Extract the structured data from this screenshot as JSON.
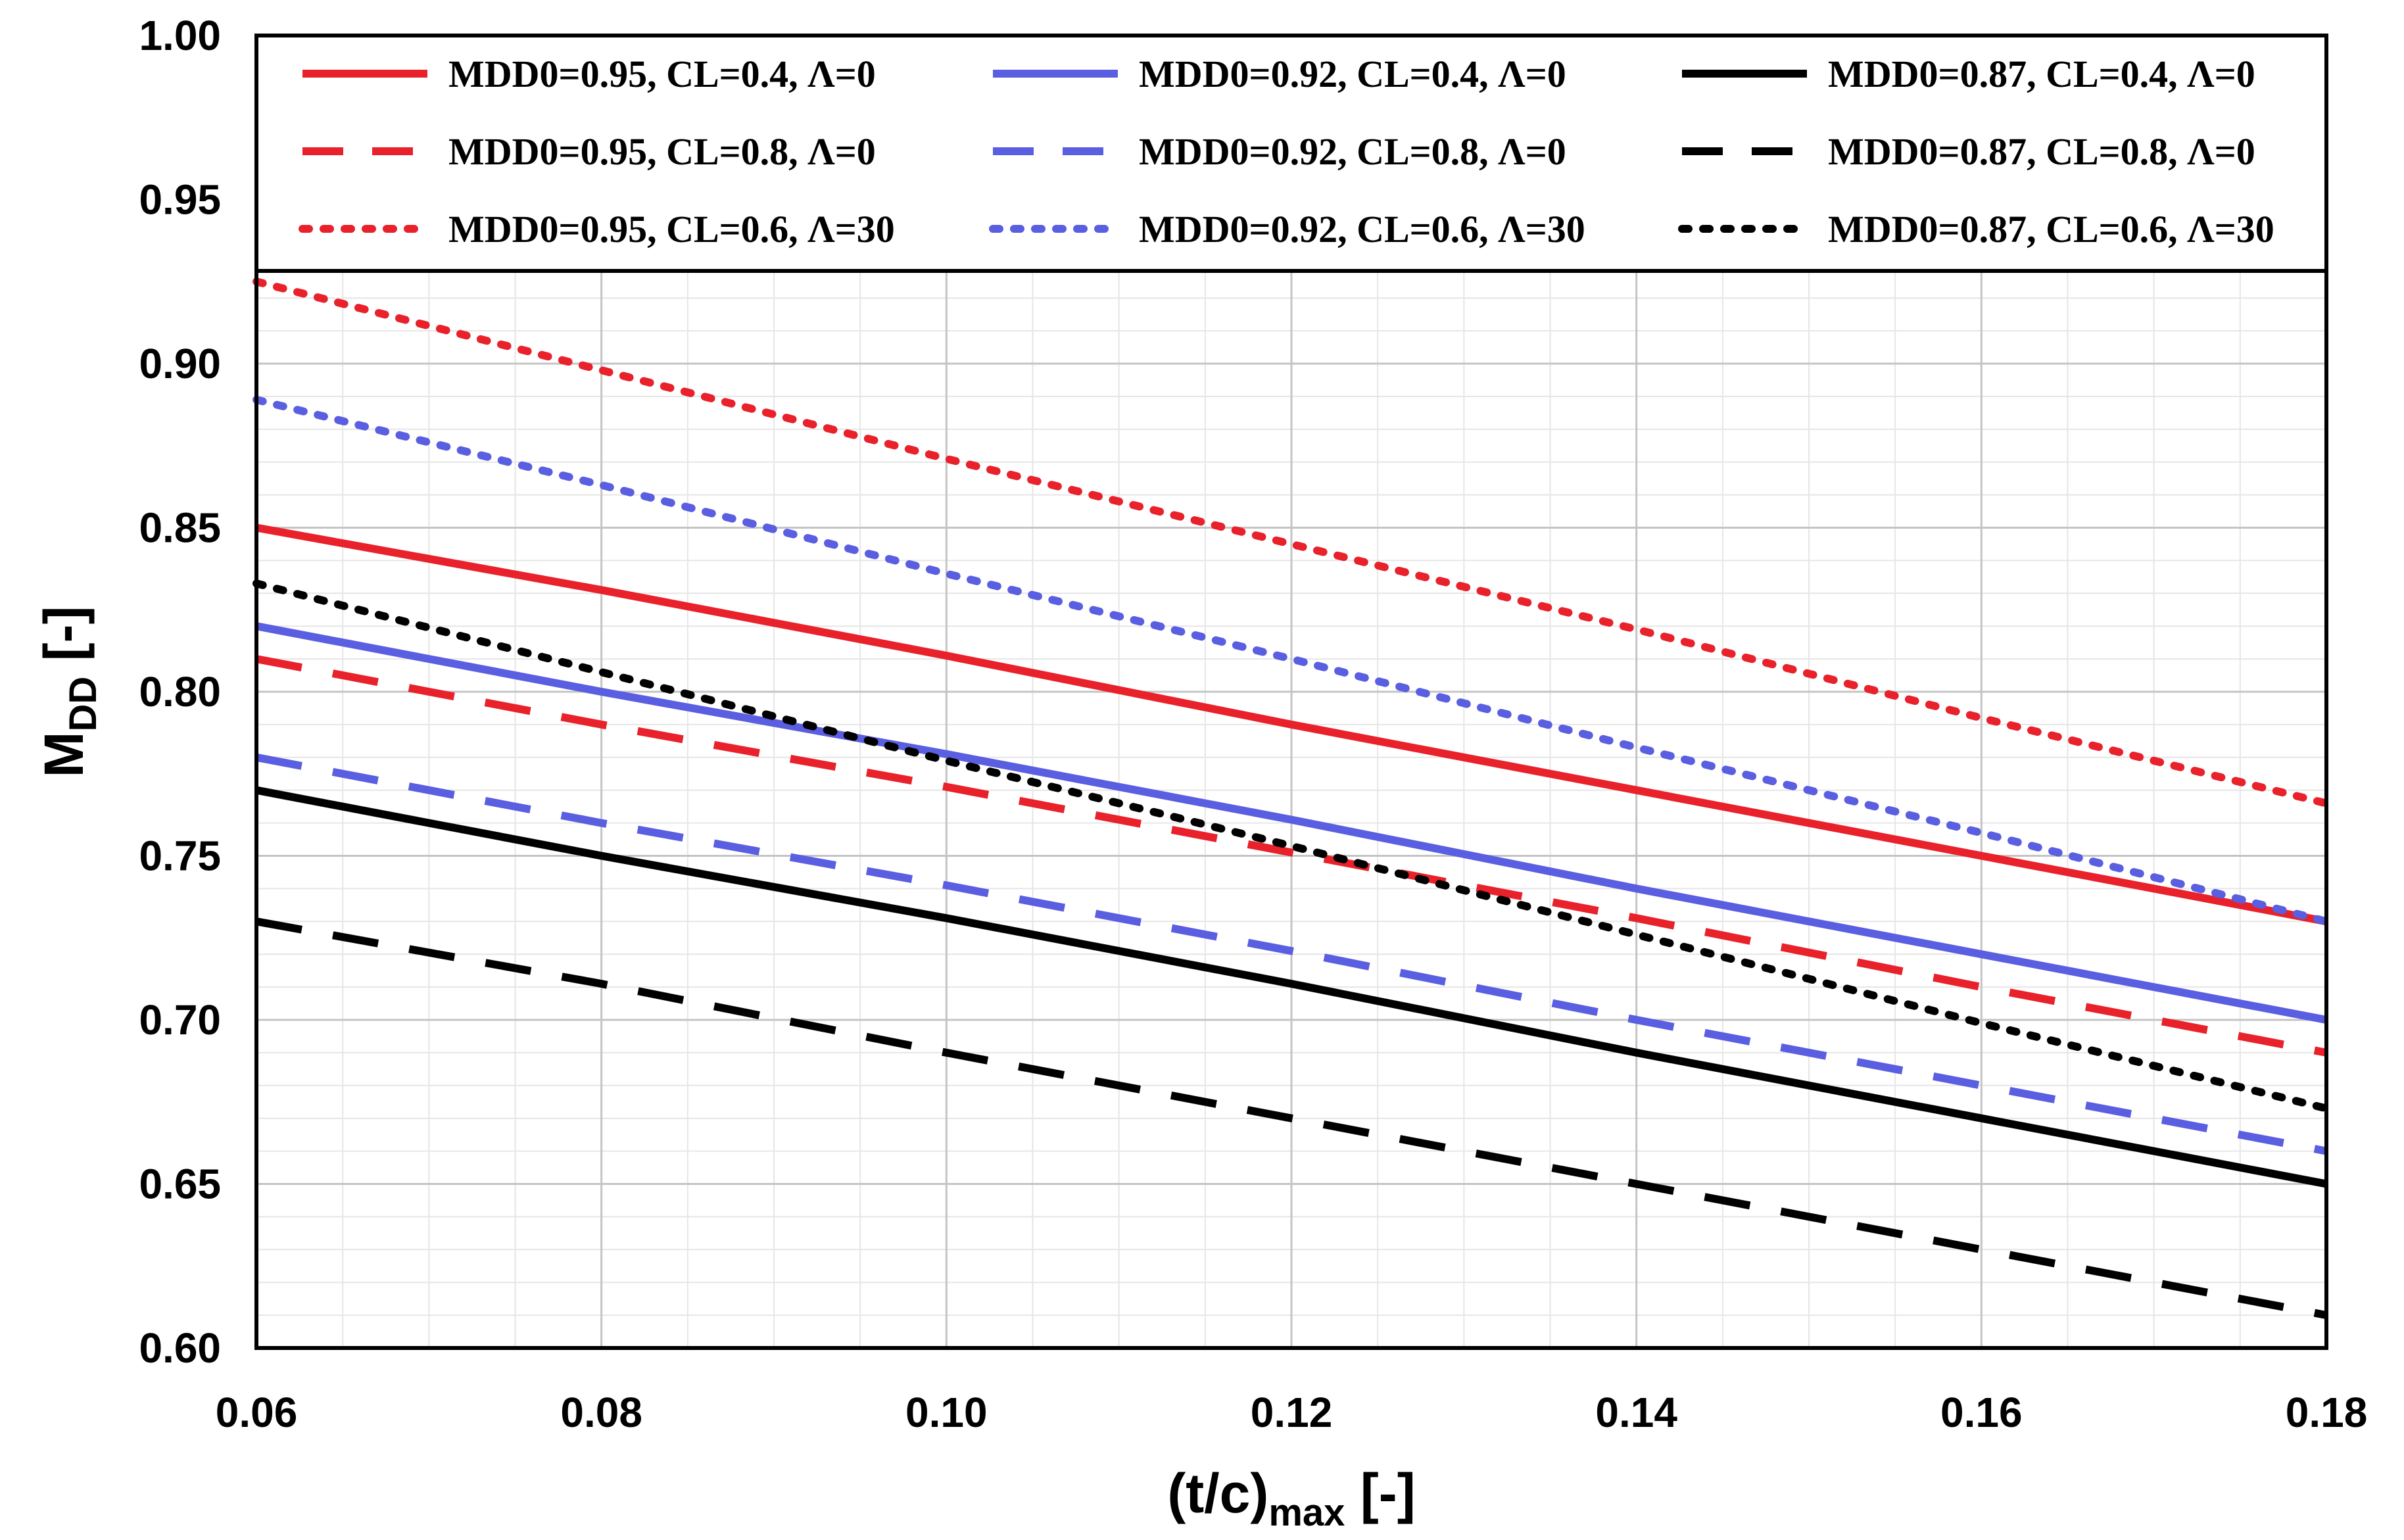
{
  "chart_data": {
    "type": "line",
    "xlabel": {
      "main": "(t/c)",
      "sub": "max",
      "suffix": " [-]"
    },
    "ylabel": {
      "main": "M",
      "sub": "DD",
      "suffix": " [-]"
    },
    "xlim": [
      0.06,
      0.18
    ],
    "ylim": [
      0.6,
      1.0
    ],
    "xticks": [
      0.06,
      0.08,
      0.1,
      0.12,
      0.14,
      0.16,
      0.18
    ],
    "xtick_labels": [
      "0.06",
      "0.08",
      "0.10",
      "0.12",
      "0.14",
      "0.16",
      "0.18"
    ],
    "yticks": [
      0.6,
      0.65,
      0.7,
      0.75,
      0.8,
      0.85,
      0.9,
      0.95,
      1.0
    ],
    "ytick_labels": [
      "0.60",
      "0.65",
      "0.70",
      "0.75",
      "0.80",
      "0.85",
      "0.90",
      "0.95",
      "1.00"
    ],
    "grid": true,
    "legend_position": "top",
    "x": [
      0.06,
      0.08,
      0.1,
      0.12,
      0.14,
      0.16,
      0.18
    ],
    "series": [
      {
        "name": "MDD0=0.95, CL=0.4, Λ=0",
        "color": "#e8212b",
        "style": "solid",
        "values": [
          0.85,
          0.831,
          0.811,
          0.79,
          0.77,
          0.75,
          0.73
        ]
      },
      {
        "name": "MDD0=0.92, CL=0.4, Λ=0",
        "color": "#5a5ee0",
        "style": "solid",
        "values": [
          0.82,
          0.8,
          0.781,
          0.761,
          0.74,
          0.72,
          0.7
        ]
      },
      {
        "name": "MDD0=0.87, CL=0.4, Λ=0",
        "color": "#000000",
        "style": "solid",
        "values": [
          0.77,
          0.75,
          0.731,
          0.711,
          0.69,
          0.67,
          0.65
        ]
      },
      {
        "name": "MDD0=0.95, CL=0.8, Λ=0",
        "color": "#e8212b",
        "style": "dashed",
        "values": [
          0.81,
          0.79,
          0.771,
          0.751,
          0.731,
          0.71,
          0.69
        ]
      },
      {
        "name": "MDD0=0.92, CL=0.8, Λ=0",
        "color": "#5a5ee0",
        "style": "dashed",
        "values": [
          0.78,
          0.76,
          0.741,
          0.721,
          0.7,
          0.68,
          0.66
        ]
      },
      {
        "name": "MDD0=0.87, CL=0.8, Λ=0",
        "color": "#000000",
        "style": "dashed",
        "values": [
          0.73,
          0.711,
          0.69,
          0.67,
          0.65,
          0.63,
          0.61
        ]
      },
      {
        "name": "MDD0=0.95, CL=0.6, Λ=30",
        "color": "#e8212b",
        "style": "dotted",
        "values": [
          0.925,
          0.898,
          0.871,
          0.845,
          0.819,
          0.792,
          0.766
        ]
      },
      {
        "name": "MDD0=0.92, CL=0.6, Λ=30",
        "color": "#5a5ee0",
        "style": "dotted",
        "values": [
          0.889,
          0.863,
          0.836,
          0.81,
          0.783,
          0.757,
          0.73
        ]
      },
      {
        "name": "MDD0=0.87, CL=0.6, Λ=30",
        "color": "#000000",
        "style": "dotted",
        "values": [
          0.833,
          0.806,
          0.779,
          0.753,
          0.726,
          0.699,
          0.673
        ]
      }
    ]
  }
}
